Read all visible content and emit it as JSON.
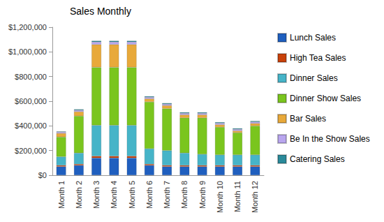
{
  "chart_data": {
    "type": "bar",
    "title": "Sales Monthly",
    "stacked": true,
    "grid": false,
    "legend": "right",
    "categories": [
      "Month 1",
      "Month 2",
      "Month 3",
      "Month 4",
      "Month 5",
      "Month 6",
      "Month 7",
      "Month 8",
      "Month 9",
      "Month 10",
      "Month 11",
      "Month 12"
    ],
    "series": [
      {
        "name": "Lunch Sales",
        "color": "#1f5fbf",
        "values": [
          70000,
          80000,
          140000,
          140000,
          140000,
          80000,
          70000,
          70000,
          70000,
          70000,
          70000,
          70000
        ]
      },
      {
        "name": "High Tea Sales",
        "color": "#c8410a",
        "values": [
          10000,
          10000,
          15000,
          15000,
          15000,
          10000,
          10000,
          10000,
          10000,
          10000,
          10000,
          10000
        ]
      },
      {
        "name": "Dinner Sales",
        "color": "#46b4c8",
        "values": [
          70000,
          90000,
          250000,
          250000,
          250000,
          125000,
          120000,
          100000,
          90000,
          85000,
          85000,
          85000
        ]
      },
      {
        "name": "Dinner Show Sales",
        "color": "#7ac51e",
        "values": [
          160000,
          300000,
          470000,
          470000,
          470000,
          380000,
          340000,
          285000,
          295000,
          225000,
          180000,
          235000
        ]
      },
      {
        "name": "Bar Sales",
        "color": "#e8a93a",
        "values": [
          30000,
          35000,
          185000,
          185000,
          185000,
          25000,
          25000,
          25000,
          25000,
          20000,
          15000,
          20000
        ]
      },
      {
        "name": "Be In the Show Sales",
        "color": "#b9a6ee",
        "values": [
          10000,
          12000,
          20000,
          20000,
          20000,
          12000,
          12000,
          12000,
          12000,
          12000,
          12000,
          12000
        ]
      },
      {
        "name": "Catering Sales",
        "color": "#2a8a9a",
        "values": [
          5000,
          8000,
          10000,
          10000,
          10000,
          8000,
          8000,
          8000,
          8000,
          8000,
          8000,
          8000
        ]
      }
    ],
    "ylim": [
      0,
      1200000
    ],
    "yticks": [
      {
        "value": 0,
        "label": "$0"
      },
      {
        "value": 200000,
        "label": "$200,000"
      },
      {
        "value": 400000,
        "label": "$400,000"
      },
      {
        "value": 600000,
        "label": "$600,000"
      },
      {
        "value": 800000,
        "label": "$800,000"
      },
      {
        "value": 1000000,
        "label": "$1,000,000"
      },
      {
        "value": 1200000,
        "label": "$1,200,000"
      }
    ]
  }
}
